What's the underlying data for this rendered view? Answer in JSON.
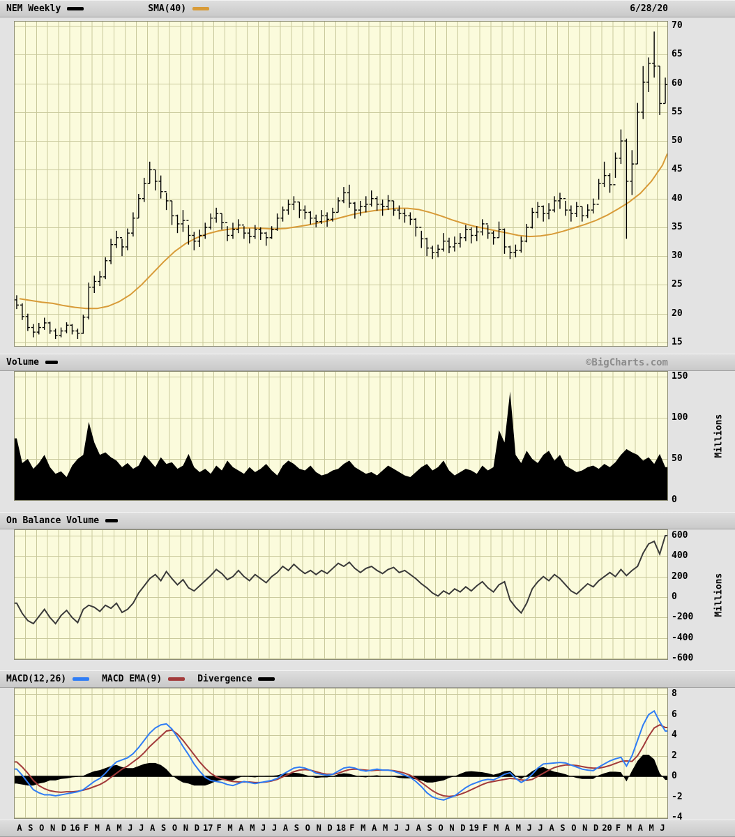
{
  "header": {
    "symbol_label": "NEM Weekly",
    "sma_label": "SMA(40)",
    "date": "6/28/20"
  },
  "panel_headers": {
    "volume": {
      "title": "Volume",
      "watermark": "©BigCharts.com",
      "unit": "Millions"
    },
    "obv": {
      "title": "On Balance Volume",
      "unit": "Millions"
    },
    "macd": {
      "macd_label": "MACD(12,26)",
      "ema_label": "MACD EMA(9)",
      "divergence_label": "Divergence"
    }
  },
  "colors": {
    "page_bg": "#E3E3E3",
    "panel_header_bg": "#D2D2D2",
    "plot_bg": "#FBFBDC",
    "grid": "#C9C99C",
    "border": "#8C8C74",
    "bars": "#000000",
    "sma": "#D89B38",
    "volume_fill": "#000000",
    "obv_line": "#3A3A3A",
    "macd_line": "#2F7DF5",
    "macd_ema": "#A23A3A",
    "divergence_fill": "#000000",
    "watermark": "#8C8C8C"
  },
  "x_axis": {
    "labels": [
      "A",
      "S",
      "O",
      "N",
      "D",
      "16",
      "F",
      "M",
      "A",
      "M",
      "J",
      "J",
      "A",
      "S",
      "O",
      "N",
      "D",
      "17",
      "F",
      "M",
      "A",
      "M",
      "J",
      "J",
      "A",
      "S",
      "O",
      "N",
      "D",
      "18",
      "F",
      "M",
      "A",
      "M",
      "J",
      "J",
      "A",
      "S",
      "O",
      "N",
      "D",
      "19",
      "F",
      "M",
      "A",
      "M",
      "J",
      "J",
      "A",
      "S",
      "O",
      "N",
      "D",
      "20",
      "F",
      "M",
      "A",
      "M",
      "J"
    ],
    "note": "monthly columns Aug 2015 - Jun 2020, 2 samples per month in series below"
  },
  "chart_data": [
    {
      "type": "ohlc-bar",
      "title": "NEM Weekly",
      "overlay": "SMA(40)",
      "ylim": [
        15,
        70
      ],
      "yticks": [
        70,
        65,
        60,
        55,
        50,
        45,
        40,
        35,
        30,
        25,
        20,
        15
      ],
      "bars_high_low_close": [
        [
          23.2,
          20.8,
          21.5
        ],
        [
          21.8,
          18.9,
          19.5
        ],
        [
          20.0,
          17.0,
          17.6
        ],
        [
          18.2,
          15.9,
          16.8
        ],
        [
          18.4,
          16.4,
          17.6
        ],
        [
          19.3,
          17.2,
          18.4
        ],
        [
          18.6,
          16.5,
          17.0
        ],
        [
          17.4,
          15.6,
          16.2
        ],
        [
          17.6,
          15.9,
          17.0
        ],
        [
          18.5,
          16.6,
          18.0
        ],
        [
          18.2,
          16.4,
          17.0
        ],
        [
          17.4,
          15.6,
          16.6
        ],
        [
          19.8,
          16.5,
          19.4
        ],
        [
          25.4,
          19.0,
          24.6
        ],
        [
          26.6,
          23.6,
          25.6
        ],
        [
          27.4,
          24.8,
          26.4
        ],
        [
          29.8,
          26.0,
          29.2
        ],
        [
          33.0,
          28.6,
          32.0
        ],
        [
          34.4,
          31.4,
          33.2
        ],
        [
          33.0,
          30.0,
          31.6
        ],
        [
          34.8,
          31.0,
          34.0
        ],
        [
          37.6,
          33.4,
          36.6
        ],
        [
          40.8,
          36.6,
          40.0
        ],
        [
          43.6,
          39.4,
          42.6
        ],
        [
          46.4,
          42.6,
          45.0
        ],
        [
          45.0,
          41.4,
          43.0
        ],
        [
          44.0,
          40.0,
          41.2
        ],
        [
          41.0,
          38.0,
          39.6
        ],
        [
          39.6,
          35.4,
          37.0
        ],
        [
          37.2,
          34.0,
          35.6
        ],
        [
          38.0,
          34.2,
          36.2
        ],
        [
          35.4,
          32.0,
          33.6
        ],
        [
          34.2,
          31.0,
          32.6
        ],
        [
          34.6,
          31.6,
          33.6
        ],
        [
          35.8,
          33.0,
          35.0
        ],
        [
          37.4,
          34.6,
          36.6
        ],
        [
          38.4,
          35.8,
          37.4
        ],
        [
          37.4,
          34.6,
          35.8
        ],
        [
          35.2,
          32.6,
          33.6
        ],
        [
          35.8,
          33.0,
          34.6
        ],
        [
          36.4,
          34.0,
          35.4
        ],
        [
          35.2,
          33.0,
          34.0
        ],
        [
          34.8,
          32.2,
          33.4
        ],
        [
          35.4,
          33.0,
          34.6
        ],
        [
          35.0,
          32.8,
          34.0
        ],
        [
          34.2,
          31.8,
          33.2
        ],
        [
          35.2,
          33.0,
          34.6
        ],
        [
          37.4,
          34.4,
          36.6
        ],
        [
          38.6,
          36.0,
          38.0
        ],
        [
          39.8,
          37.2,
          39.0
        ],
        [
          40.4,
          38.0,
          39.4
        ],
        [
          39.4,
          36.6,
          38.0
        ],
        [
          38.8,
          36.4,
          37.6
        ],
        [
          37.8,
          35.5,
          36.6
        ],
        [
          37.2,
          35.0,
          36.0
        ],
        [
          38.0,
          35.6,
          37.0
        ],
        [
          37.6,
          35.1,
          36.4
        ],
        [
          38.4,
          36.0,
          37.6
        ],
        [
          40.2,
          37.6,
          39.6
        ],
        [
          42.0,
          39.2,
          41.0
        ],
        [
          42.4,
          38.4,
          39.2
        ],
        [
          39.4,
          36.5,
          38.0
        ],
        [
          39.6,
          37.0,
          38.6
        ],
        [
          40.4,
          37.6,
          39.0
        ],
        [
          41.4,
          38.6,
          40.0
        ],
        [
          40.4,
          37.9,
          39.0
        ],
        [
          39.8,
          37.0,
          38.6
        ],
        [
          40.6,
          38.0,
          39.6
        ],
        [
          39.6,
          37.0,
          38.0
        ],
        [
          38.8,
          36.4,
          37.4
        ],
        [
          38.2,
          35.8,
          37.0
        ],
        [
          37.6,
          35.4,
          36.4
        ],
        [
          36.6,
          33.4,
          35.0
        ],
        [
          34.4,
          31.4,
          33.0
        ],
        [
          33.2,
          30.0,
          31.4
        ],
        [
          31.8,
          29.5,
          30.6
        ],
        [
          32.0,
          29.8,
          31.2
        ],
        [
          34.0,
          30.8,
          32.6
        ],
        [
          33.2,
          30.5,
          31.6
        ],
        [
          33.4,
          30.8,
          32.2
        ],
        [
          34.0,
          31.5,
          33.2
        ],
        [
          35.4,
          32.6,
          34.6
        ],
        [
          35.0,
          32.2,
          33.6
        ],
        [
          35.2,
          32.6,
          34.2
        ],
        [
          36.4,
          33.6,
          35.6
        ],
        [
          35.4,
          33.0,
          34.0
        ],
        [
          34.4,
          32.0,
          33.2
        ],
        [
          36.0,
          33.2,
          34.6
        ],
        [
          34.8,
          30.4,
          31.6
        ],
        [
          31.8,
          29.5,
          30.6
        ],
        [
          32.0,
          29.8,
          31.0
        ],
        [
          33.4,
          30.6,
          32.6
        ],
        [
          35.6,
          32.4,
          35.0
        ],
        [
          38.4,
          34.8,
          37.6
        ],
        [
          39.4,
          36.6,
          38.6
        ],
        [
          38.8,
          36.0,
          37.4
        ],
        [
          39.2,
          36.4,
          38.0
        ],
        [
          40.4,
          37.6,
          39.6
        ],
        [
          41.0,
          38.2,
          40.0
        ],
        [
          39.6,
          37.0,
          38.0
        ],
        [
          38.8,
          36.0,
          37.4
        ],
        [
          39.4,
          36.8,
          38.6
        ],
        [
          38.6,
          36.0,
          37.0
        ],
        [
          39.0,
          36.6,
          38.0
        ],
        [
          40.0,
          37.4,
          39.0
        ],
        [
          43.4,
          39.8,
          42.6
        ],
        [
          46.4,
          42.0,
          44.0
        ],
        [
          44.4,
          41.0,
          42.4
        ],
        [
          48.0,
          43.6,
          47.0
        ],
        [
          52.0,
          46.0,
          50.0
        ],
        [
          50.4,
          33.0,
          43.0
        ],
        [
          48.4,
          40.6,
          46.0
        ],
        [
          56.6,
          46.0,
          55.0
        ],
        [
          63.0,
          53.8,
          60.2
        ],
        [
          64.5,
          58.5,
          63.5
        ],
        [
          69.0,
          61.0,
          63.0
        ],
        [
          63.0,
          54.5,
          56.5
        ],
        [
          61.0,
          56.5,
          59.8
        ]
      ],
      "sma40_monthly": [
        22.6,
        22.3,
        22.0,
        21.8,
        21.4,
        21.1,
        20.9,
        20.9,
        21.3,
        22.1,
        23.3,
        25.0,
        27.0,
        29.0,
        30.8,
        32.2,
        33.2,
        33.9,
        34.4,
        34.7,
        34.9,
        34.9,
        34.8,
        34.7,
        34.8,
        35.1,
        35.4,
        35.8,
        36.2,
        36.7,
        37.2,
        37.6,
        37.9,
        38.1,
        38.3,
        38.3,
        38.1,
        37.6,
        37.0,
        36.3,
        35.7,
        35.2,
        34.8,
        34.4,
        34.0,
        33.6,
        33.4,
        33.5,
        33.8,
        34.3,
        34.9,
        35.5,
        36.2,
        37.1,
        38.2,
        39.4,
        40.9,
        43.0,
        45.8,
        47.8
      ]
    },
    {
      "type": "area",
      "title": "Volume",
      "ylabel": "Millions",
      "ylim": [
        0,
        150
      ],
      "yticks": [
        150,
        100,
        50,
        0
      ],
      "values": [
        75,
        45,
        50,
        38,
        45,
        55,
        40,
        32,
        35,
        28,
        42,
        50,
        55,
        95,
        70,
        55,
        58,
        52,
        48,
        40,
        45,
        38,
        42,
        55,
        48,
        40,
        52,
        44,
        46,
        38,
        42,
        56,
        40,
        34,
        38,
        32,
        42,
        36,
        48,
        40,
        36,
        32,
        40,
        34,
        38,
        44,
        36,
        30,
        42,
        48,
        44,
        38,
        36,
        42,
        34,
        30,
        32,
        36,
        38,
        44,
        48,
        40,
        36,
        32,
        34,
        30,
        36,
        42,
        38,
        34,
        30,
        28,
        34,
        40,
        44,
        36,
        40,
        48,
        36,
        30,
        34,
        38,
        36,
        32,
        42,
        36,
        40,
        85,
        70,
        132,
        55,
        45,
        60,
        50,
        45,
        55,
        60,
        48,
        55,
        42,
        38,
        34,
        36,
        40,
        42,
        38,
        44,
        40,
        46,
        55,
        62,
        58,
        55,
        48,
        52,
        44,
        56,
        40
      ]
    },
    {
      "type": "line",
      "title": "On Balance Volume",
      "ylabel": "Millions",
      "ylim": [
        -600,
        600
      ],
      "yticks": [
        600,
        400,
        200,
        0,
        -200,
        -400,
        -600
      ],
      "values": [
        -60,
        -160,
        -230,
        -260,
        -190,
        -120,
        -200,
        -260,
        -180,
        -130,
        -200,
        -250,
        -120,
        -80,
        -100,
        -140,
        -80,
        -110,
        -60,
        -150,
        -120,
        -60,
        40,
        110,
        180,
        220,
        160,
        250,
        180,
        120,
        170,
        90,
        60,
        110,
        160,
        210,
        270,
        230,
        170,
        200,
        260,
        200,
        160,
        220,
        180,
        140,
        200,
        240,
        300,
        260,
        320,
        270,
        230,
        260,
        220,
        260,
        230,
        280,
        330,
        300,
        340,
        280,
        240,
        280,
        300,
        260,
        230,
        270,
        290,
        240,
        260,
        220,
        180,
        130,
        90,
        40,
        10,
        60,
        30,
        80,
        50,
        100,
        60,
        110,
        150,
        90,
        50,
        120,
        150,
        -30,
        -100,
        -155,
        -60,
        80,
        150,
        200,
        160,
        220,
        180,
        120,
        60,
        30,
        80,
        130,
        100,
        160,
        200,
        240,
        200,
        270,
        210,
        260,
        300,
        430,
        520,
        545,
        420,
        600
      ]
    },
    {
      "type": "line",
      "title": "MACD",
      "ylim": [
        -4,
        8
      ],
      "yticks": [
        8,
        6,
        4,
        2,
        0,
        -2,
        -4
      ],
      "series": [
        {
          "name": "MACD(12,26)",
          "values": [
            0.7,
            0.1,
            -0.6,
            -1.3,
            -1.6,
            -1.8,
            -1.8,
            -1.9,
            -1.8,
            -1.7,
            -1.6,
            -1.5,
            -1.3,
            -0.9,
            -0.5,
            -0.2,
            0.3,
            0.9,
            1.4,
            1.6,
            1.8,
            2.2,
            2.8,
            3.5,
            4.2,
            4.7,
            5.0,
            5.1,
            4.6,
            3.8,
            2.9,
            2.1,
            1.2,
            0.5,
            -0.1,
            -0.4,
            -0.5,
            -0.6,
            -0.8,
            -0.9,
            -0.7,
            -0.5,
            -0.6,
            -0.7,
            -0.6,
            -0.5,
            -0.4,
            -0.2,
            0.2,
            0.5,
            0.8,
            0.9,
            0.8,
            0.6,
            0.3,
            0.2,
            0.1,
            0.2,
            0.5,
            0.8,
            0.9,
            0.8,
            0.6,
            0.5,
            0.6,
            0.7,
            0.6,
            0.6,
            0.5,
            0.3,
            0.1,
            -0.1,
            -0.5,
            -1.0,
            -1.6,
            -2.0,
            -2.2,
            -2.3,
            -2.1,
            -1.9,
            -1.5,
            -1.1,
            -0.8,
            -0.6,
            -0.4,
            -0.3,
            -0.35,
            -0.1,
            0.2,
            0.35,
            -0.2,
            -0.6,
            -0.3,
            0.2,
            0.8,
            1.2,
            1.25,
            1.3,
            1.35,
            1.3,
            1.1,
            0.9,
            0.7,
            0.6,
            0.55,
            0.9,
            1.2,
            1.5,
            1.7,
            1.85,
            1.0,
            2.0,
            3.5,
            5.0,
            6.0,
            6.35,
            5.3,
            4.4
          ]
        },
        {
          "name": "MACD EMA(9)",
          "values": [
            1.4,
            0.9,
            0.3,
            -0.4,
            -0.9,
            -1.2,
            -1.4,
            -1.5,
            -1.55,
            -1.5,
            -1.5,
            -1.45,
            -1.35,
            -1.2,
            -1.0,
            -0.8,
            -0.5,
            -0.1,
            0.3,
            0.7,
            1.0,
            1.4,
            1.8,
            2.3,
            2.9,
            3.4,
            3.9,
            4.4,
            4.5,
            4.1,
            3.5,
            2.8,
            2.1,
            1.4,
            0.8,
            0.3,
            -0.05,
            -0.25,
            -0.4,
            -0.5,
            -0.55,
            -0.55,
            -0.55,
            -0.6,
            -0.6,
            -0.55,
            -0.45,
            -0.3,
            -0.05,
            0.2,
            0.45,
            0.6,
            0.65,
            0.6,
            0.45,
            0.3,
            0.2,
            0.2,
            0.3,
            0.5,
            0.65,
            0.7,
            0.65,
            0.6,
            0.55,
            0.6,
            0.6,
            0.6,
            0.55,
            0.45,
            0.3,
            0.1,
            -0.2,
            -0.6,
            -1.0,
            -1.4,
            -1.7,
            -1.9,
            -1.95,
            -1.9,
            -1.75,
            -1.55,
            -1.3,
            -1.05,
            -0.8,
            -0.6,
            -0.5,
            -0.4,
            -0.3,
            -0.2,
            -0.25,
            -0.35,
            -0.4,
            -0.3,
            0.0,
            0.3,
            0.6,
            0.85,
            1.0,
            1.1,
            1.1,
            1.05,
            0.95,
            0.85,
            0.8,
            0.8,
            0.9,
            1.05,
            1.25,
            1.45,
            1.5,
            1.45,
            2.0,
            2.9,
            3.9,
            4.7,
            5.0,
            4.75
          ]
        },
        {
          "name": "Divergence",
          "values": "computed as MACD minus EMA, drawn as black filled area"
        }
      ]
    }
  ]
}
